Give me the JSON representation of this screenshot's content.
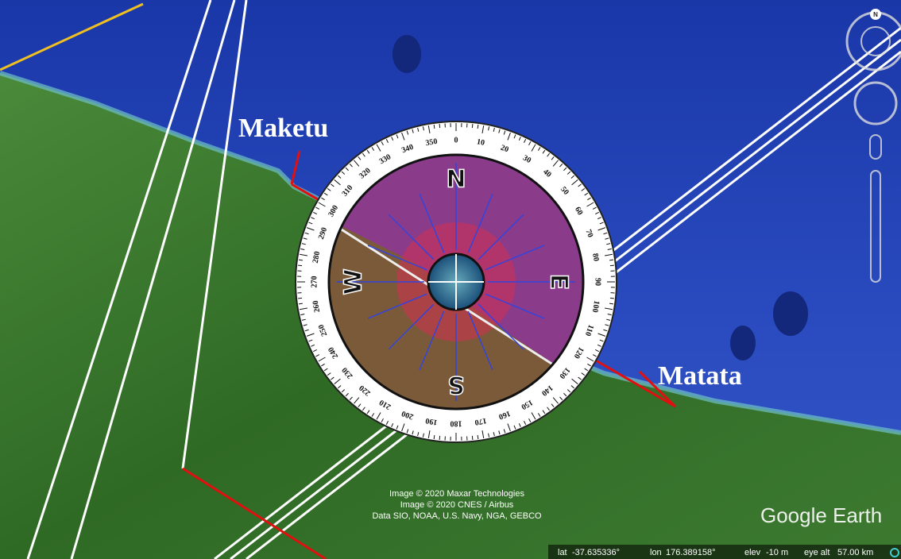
{
  "labels": {
    "maketu": "Maketu",
    "matata": "Matata"
  },
  "compass": {
    "cardinals": [
      "N",
      "E",
      "S",
      "W"
    ],
    "degrees": [
      0,
      10,
      20,
      30,
      40,
      50,
      60,
      70,
      80,
      90,
      100,
      110,
      120,
      130,
      140,
      150,
      160,
      170,
      180,
      190,
      200,
      210,
      220,
      230,
      240,
      250,
      260,
      270,
      280,
      290,
      300,
      310,
      320,
      330,
      340,
      350
    ]
  },
  "attribution": [
    "Image © 2020 Maxar Technologies",
    "Image © 2020 CNES / Airbus",
    "Data SIO, NOAA, U.S. Navy, NGA, GEBCO"
  ],
  "brand": "Google Earth",
  "status": {
    "lat_label": "lat",
    "lat": "-37.635336°",
    "lon_label": "lon",
    "lon": "176.389158°",
    "elev_label": "elev",
    "elev": "-10 m",
    "eye_alt_label": "eye alt",
    "eye_alt": "57.00 km"
  },
  "nav": {
    "north": "N"
  }
}
